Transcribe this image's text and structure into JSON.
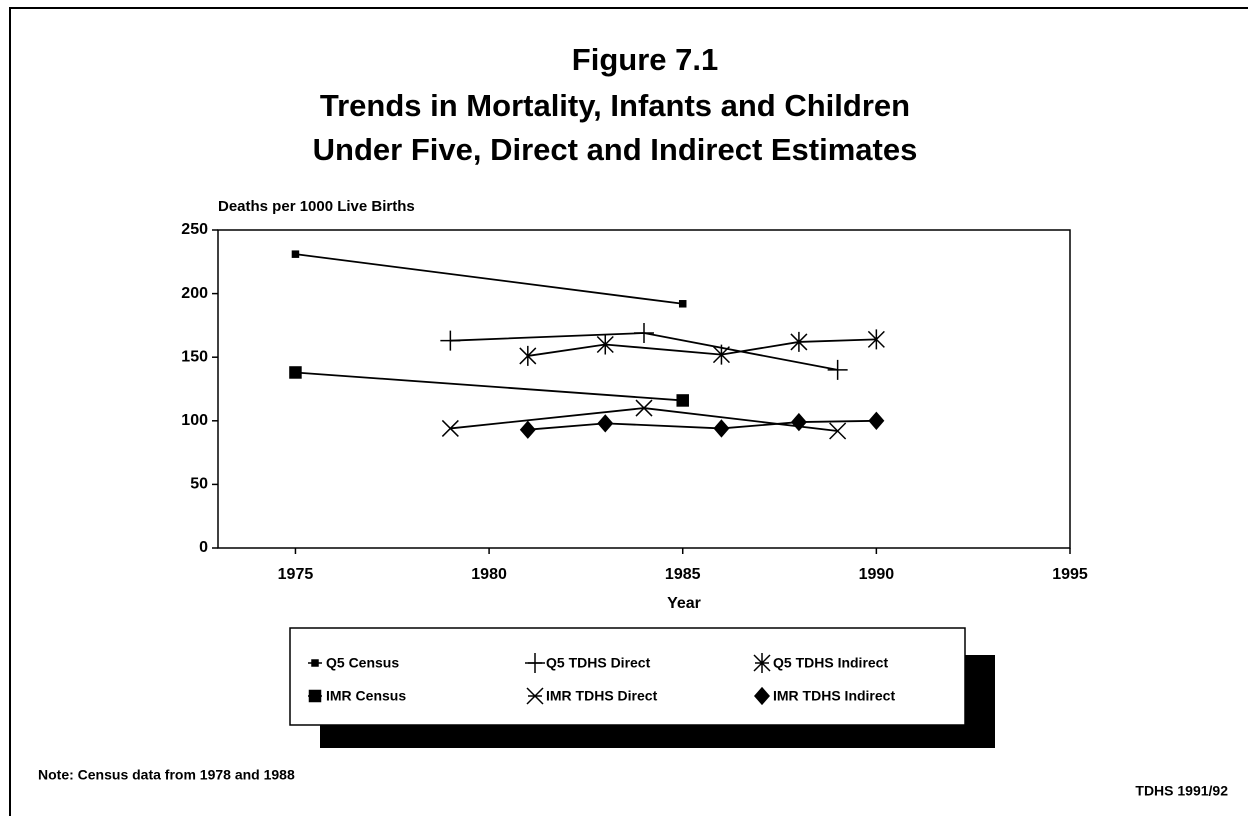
{
  "chart_data": {
    "type": "line",
    "title": [
      "Figure 7.1",
      "Trends in Mortality, Infants and Children",
      "Under Five, Direct and Indirect Estimates"
    ],
    "y_label": "Deaths per 1000 Live Births",
    "x_label": "Year",
    "xlim": [
      1973,
      1995
    ],
    "xticks": [
      1975,
      1980,
      1985,
      1990,
      1995
    ],
    "ylim": [
      0,
      250
    ],
    "yticks": [
      0,
      50,
      100,
      150,
      200,
      250
    ],
    "series": [
      {
        "name": "Q5 Census",
        "color": "#000000",
        "marker": "dot",
        "x": [
          1975,
          1985
        ],
        "values": [
          231,
          192
        ]
      },
      {
        "name": "Q5 TDHS Direct",
        "color": "#000000",
        "marker": "plus",
        "x": [
          1979,
          1984,
          1989
        ],
        "values": [
          163,
          169,
          140
        ]
      },
      {
        "name": "Q5 TDHS Indirect",
        "color": "#000000",
        "marker": "asterisk",
        "x": [
          1981,
          1983,
          1986,
          1988,
          1990
        ],
        "values": [
          151,
          160,
          152,
          162,
          164
        ]
      },
      {
        "name": "IMR Census",
        "color": "#000000",
        "marker": "square",
        "x": [
          1975,
          1985
        ],
        "values": [
          138,
          116
        ]
      },
      {
        "name": "IMR TDHS Direct",
        "color": "#000000",
        "marker": "cross",
        "x": [
          1979,
          1984,
          1989
        ],
        "values": [
          94,
          110,
          92
        ]
      },
      {
        "name": "IMR TDHS Indirect",
        "color": "#000000",
        "marker": "diamond",
        "x": [
          1981,
          1983,
          1986,
          1988,
          1990
        ],
        "values": [
          93,
          98,
          94,
          99,
          100
        ]
      }
    ],
    "note": "Note: Census data from 1978 and 1988",
    "source": "TDHS 1991/92"
  }
}
